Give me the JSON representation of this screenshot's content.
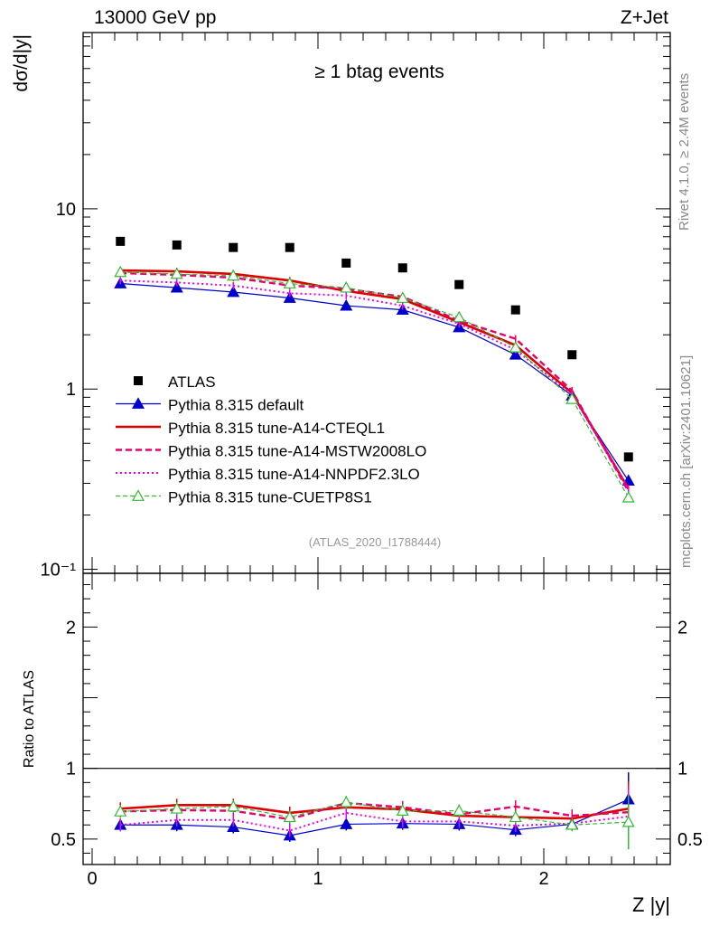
{
  "header": {
    "energy_label": "13000 GeV pp",
    "process_label": "Z+Jet",
    "selection_label": "≥ 1 btag events",
    "analysis_id": "(ATLAS_2020_I1788444)",
    "rivet_label": "Rivet 4.1.0, ≥ 2.4M events",
    "mcplots_label": "mcplots.cern.ch [arXiv:2401.10621]"
  },
  "chart_data": [
    {
      "type": "scatter",
      "panel": "main",
      "ylabel": "dσ/d|y|",
      "yscale": "log",
      "ylim": [
        0.095,
        95
      ],
      "xlim": [
        -0.04,
        2.56
      ],
      "y_ticks": [
        {
          "value": 10,
          "label": "10"
        },
        {
          "value": 1,
          "label": "1"
        },
        {
          "value": 0.1,
          "label": "10⁻¹"
        }
      ],
      "x": [
        0.125,
        0.375,
        0.625,
        0.875,
        1.125,
        1.375,
        1.625,
        1.875,
        2.125,
        2.375
      ],
      "series": [
        {
          "name": "ATLAS",
          "style": "square",
          "color": "#000000",
          "values": [
            6.6,
            6.3,
            6.1,
            6.1,
            5.0,
            4.7,
            3.8,
            2.75,
            1.55,
            0.42
          ]
        },
        {
          "name": "Pythia 8.315 default",
          "style": "solid-triangle",
          "color": "#0000cc",
          "values": [
            3.85,
            3.65,
            3.45,
            3.2,
            2.9,
            2.75,
            2.2,
            1.55,
            0.92,
            0.31
          ]
        },
        {
          "name": "Pythia 8.315 tune-A14-CTEQL1",
          "style": "solid-thick",
          "color": "#dd0000",
          "values": [
            4.55,
            4.5,
            4.35,
            4.0,
            3.5,
            3.15,
            2.35,
            1.75,
            0.95,
            0.28
          ]
        },
        {
          "name": "Pythia 8.315 tune-A14-MSTW2008LO",
          "style": "dashed",
          "color": "#e8006a",
          "values": [
            4.4,
            4.3,
            4.15,
            3.75,
            3.6,
            3.25,
            2.4,
            1.9,
            0.98,
            0.27
          ]
        },
        {
          "name": "Pythia 8.315 tune-A14-NNPDF2.3LO",
          "style": "dotted",
          "color": "#ee00ee",
          "values": [
            4.0,
            3.9,
            3.75,
            3.4,
            3.3,
            2.9,
            2.3,
            1.65,
            0.93,
            0.28
          ]
        },
        {
          "name": "Pythia 8.315 tune-CUETP8S1",
          "style": "dashed-open-triangle",
          "color": "#33bb33",
          "values": [
            4.45,
            4.35,
            4.25,
            3.85,
            3.65,
            3.2,
            2.5,
            1.7,
            0.88,
            0.25
          ]
        }
      ]
    },
    {
      "type": "line",
      "panel": "ratio",
      "ylabel": "Ratio to ATLAS",
      "xlabel": "Z |y|",
      "ylim": [
        0.32,
        2.38
      ],
      "xlim": [
        -0.04,
        2.56
      ],
      "y_ticks": [
        {
          "value": 2,
          "label": "2"
        },
        {
          "value": 1,
          "label": "1"
        },
        {
          "value": 0.5,
          "label": "0.5"
        }
      ],
      "x_ticks": [
        {
          "value": 0,
          "label": "0"
        },
        {
          "value": 1,
          "label": "1"
        },
        {
          "value": 2,
          "label": "2"
        }
      ],
      "x": [
        0.125,
        0.375,
        0.625,
        0.875,
        1.125,
        1.375,
        1.625,
        1.875,
        2.125,
        2.375
      ],
      "series": [
        {
          "name": "Pythia 8.315 default",
          "color": "#0000cc",
          "values": [
            0.6,
            0.6,
            0.585,
            0.525,
            0.605,
            0.61,
            0.605,
            0.565,
            0.605,
            0.78
          ]
        },
        {
          "name": "Pythia 8.315 tune-A14-CTEQL1",
          "color": "#dd0000",
          "values": [
            0.715,
            0.74,
            0.74,
            0.685,
            0.725,
            0.71,
            0.665,
            0.655,
            0.645,
            0.715
          ]
        },
        {
          "name": "Pythia 8.315 tune-A14-MSTW2008LO",
          "color": "#e8006a",
          "values": [
            0.695,
            0.705,
            0.7,
            0.64,
            0.755,
            0.725,
            0.675,
            0.73,
            0.665,
            0.69
          ]
        },
        {
          "name": "Pythia 8.315 tune-A14-NNPDF2.3LO",
          "color": "#ee00ee",
          "values": [
            0.6,
            0.635,
            0.635,
            0.56,
            0.685,
            0.625,
            0.625,
            0.595,
            0.61,
            0.66
          ]
        },
        {
          "name": "Pythia 8.315 tune-CUETP8S1",
          "color": "#33bb33",
          "values": [
            0.695,
            0.715,
            0.73,
            0.655,
            0.76,
            0.7,
            0.7,
            0.655,
            0.6,
            0.62
          ]
        }
      ]
    }
  ]
}
